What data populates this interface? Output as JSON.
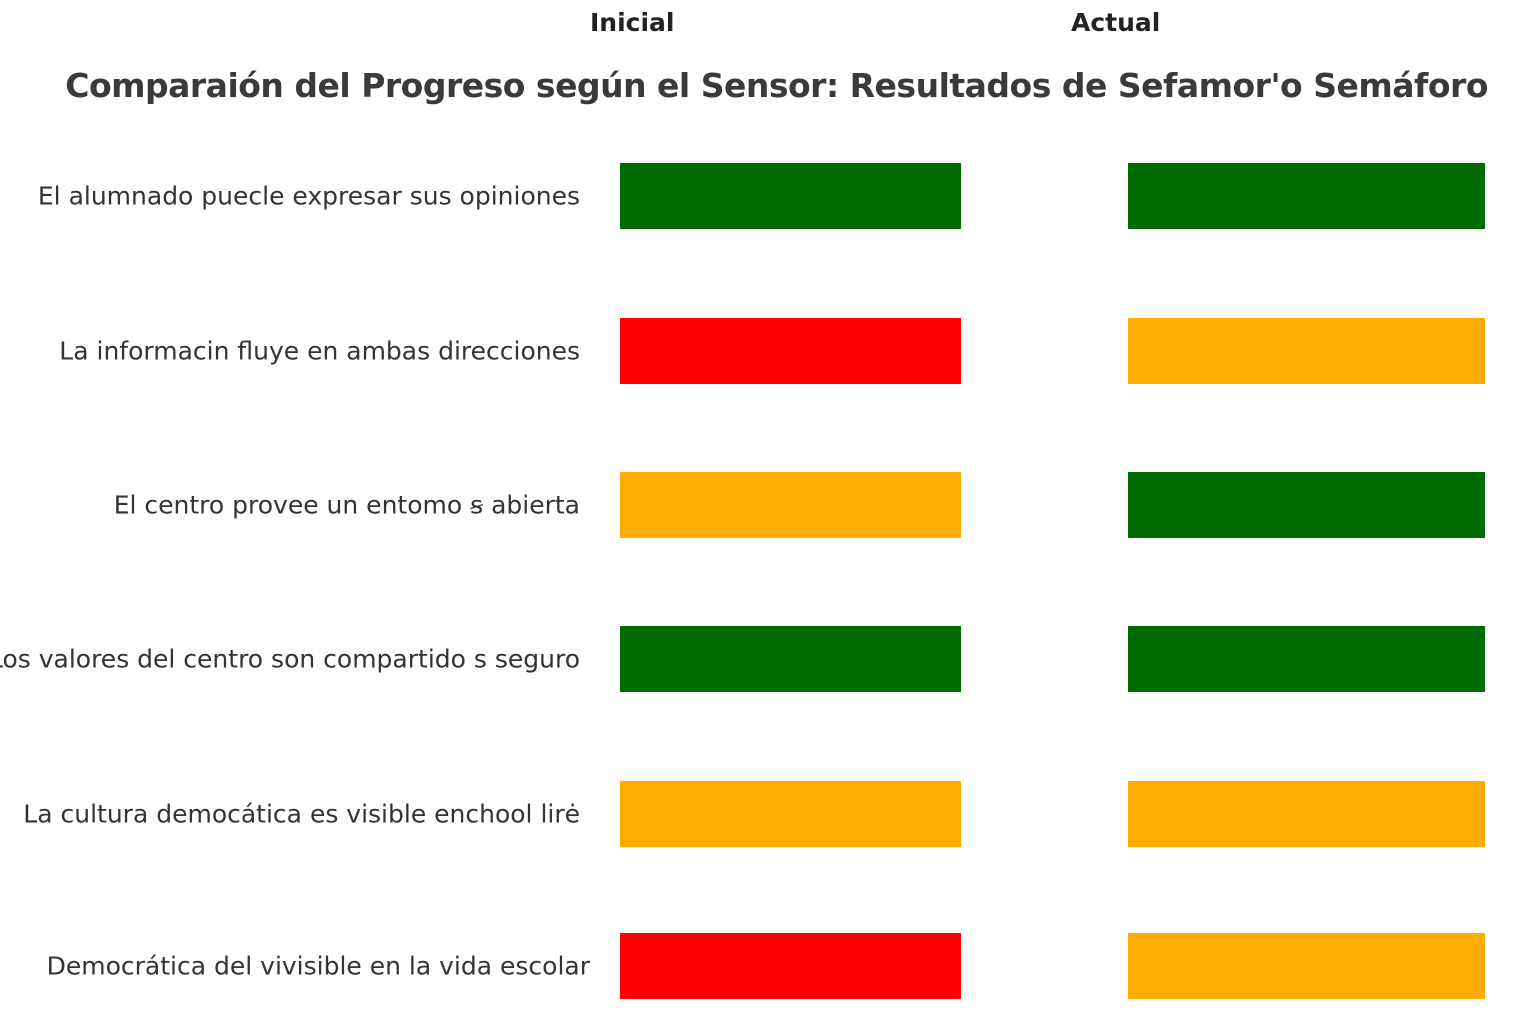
{
  "chart_data": {
    "type": "table",
    "title": "Comparaión del Progreso según el Sensor: Resultados de Sefamor'o Semáforo",
    "columns": [
      "Inicial",
      "Actual"
    ],
    "status_colors": {
      "green": "#006b00",
      "red": "#ff0000",
      "amber": "#ffab00"
    },
    "rows": [
      {
        "label": "El alumnado puecle expresar sus opiniones",
        "inicial": "green",
        "actual": "green"
      },
      {
        "label": "La informacin fluye en ambas direcciones",
        "inicial": "red",
        "actual": "amber"
      },
      {
        "label": "El centro provee un entomo ꞩ abierta",
        "inicial": "amber",
        "actual": "green"
      },
      {
        "label": "Los valores del  centro son compartido s seguro",
        "inicial": "green",
        "actual": "green"
      },
      {
        "label": "La cultura democática es visible enchool lirė",
        "inicial": "amber",
        "actual": "amber"
      },
      {
        "label": "Democrática del vivisible en la vida escolar",
        "inicial": "red",
        "actual": "amber"
      }
    ]
  }
}
